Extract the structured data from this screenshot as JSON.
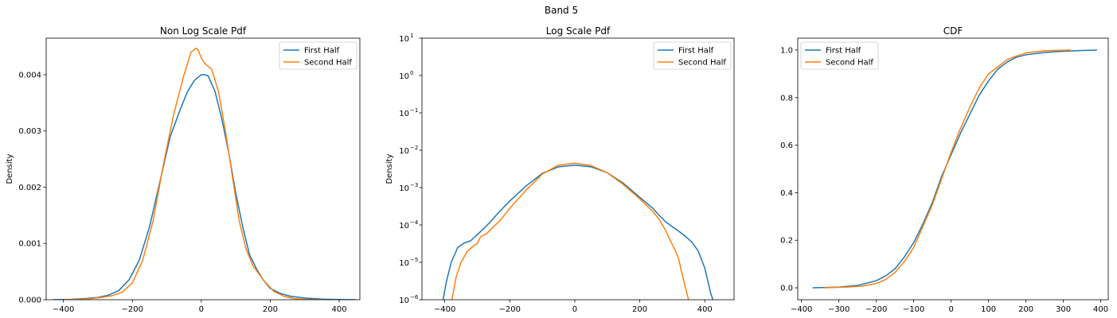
{
  "figure": {
    "suptitle": "Band 5"
  },
  "colors": {
    "first": "#1f77b4",
    "second": "#ff7f0e"
  },
  "chart_data": [
    {
      "type": "line",
      "title": "Non Log Scale Pdf",
      "xlabel": "",
      "ylabel": "Density",
      "xlim": [
        -450,
        460
      ],
      "ylim": [
        0,
        0.00465
      ],
      "yscale": "linear",
      "xticks": [
        -400,
        -200,
        0,
        200,
        400
      ],
      "xtick_labels": [
        "−400",
        "−200",
        "0",
        "200",
        "400"
      ],
      "yticks": [
        0,
        0.001,
        0.002,
        0.003,
        0.004
      ],
      "ytick_labels": [
        "0.000",
        "0.001",
        "0.002",
        "0.003",
        "0.004"
      ],
      "legend": {
        "position": "top-right",
        "entries": [
          "First Half",
          "Second Half"
        ]
      },
      "series": [
        {
          "name": "First Half",
          "color": "#1f77b4",
          "x": [
            -430,
            -380,
            -340,
            -300,
            -270,
            -240,
            -210,
            -180,
            -150,
            -120,
            -90,
            -60,
            -40,
            -20,
            0,
            10,
            20,
            40,
            60,
            80,
            100,
            120,
            140,
            160,
            180,
            200,
            230,
            260,
            300,
            350,
            400,
            450
          ],
          "y": [
            0,
            5e-06,
            2e-05,
            4e-05,
            8e-05,
            0.00016,
            0.00035,
            0.0007,
            0.0013,
            0.0021,
            0.0029,
            0.0034,
            0.0037,
            0.0039,
            0.004,
            0.004,
            0.00398,
            0.0037,
            0.0032,
            0.0026,
            0.0019,
            0.0013,
            0.0008,
            0.00055,
            0.00035,
            0.0002,
            0.00011,
            6e-05,
            3e-05,
            1e-05,
            4e-06,
            0
          ]
        },
        {
          "name": "Second Half",
          "color": "#ff7f0e",
          "x": [
            -400,
            -360,
            -320,
            -290,
            -260,
            -230,
            -200,
            -170,
            -140,
            -110,
            -80,
            -50,
            -30,
            -15,
            -10,
            0,
            10,
            30,
            50,
            70,
            90,
            110,
            130,
            150,
            180,
            210,
            240,
            270,
            300,
            330,
            350
          ],
          "y": [
            0,
            5e-06,
            2e-05,
            4e-05,
            7e-05,
            0.00013,
            0.0003,
            0.0007,
            0.0014,
            0.0024,
            0.0033,
            0.004,
            0.0044,
            0.00447,
            0.00445,
            0.0043,
            0.0042,
            0.0041,
            0.0037,
            0.003,
            0.0022,
            0.0014,
            0.0009,
            0.0006,
            0.00035,
            0.00015,
            6e-05,
            2e-05,
            7e-06,
            2e-06,
            0
          ]
        }
      ]
    },
    {
      "type": "line",
      "title": "Log Scale Pdf",
      "xlabel": "",
      "ylabel": "Density",
      "xlim": [
        -470,
        490
      ],
      "ylim": [
        1e-06,
        10
      ],
      "yscale": "log",
      "xticks": [
        -400,
        -200,
        0,
        200,
        400
      ],
      "xtick_labels": [
        "−400",
        "−200",
        "0",
        "200",
        "400"
      ],
      "yticks": [
        1e-06,
        1e-05,
        0.0001,
        0.001,
        0.01,
        0.1,
        1,
        10
      ],
      "ytick_labels": [
        [
          "10",
          "−6"
        ],
        [
          "10",
          "−5"
        ],
        [
          "10",
          "−4"
        ],
        [
          "10",
          "−3"
        ],
        [
          "10",
          "−2"
        ],
        [
          "10",
          "−1"
        ],
        [
          "10",
          "0"
        ],
        [
          "10",
          "1"
        ]
      ],
      "legend": {
        "position": "top-right",
        "entries": [
          "First Half",
          "Second Half"
        ]
      },
      "series": [
        {
          "name": "First Half",
          "color": "#1f77b4",
          "x": [
            -405,
            -395,
            -380,
            -360,
            -340,
            -320,
            -300,
            -280,
            -260,
            -240,
            -200,
            -150,
            -100,
            -50,
            0,
            50,
            100,
            150,
            200,
            240,
            260,
            280,
            300,
            320,
            340,
            360,
            380,
            400,
            410,
            418,
            425
          ],
          "y": [
            1e-06,
            3e-06,
            1e-05,
            2.5e-05,
            3.3e-05,
            3.8e-05,
            5.5e-05,
            8e-05,
            0.00012,
            0.00019,
            0.00044,
            0.0011,
            0.0024,
            0.0036,
            0.004,
            0.0036,
            0.0025,
            0.0013,
            0.00055,
            0.00028,
            0.00018,
            0.00012,
            9e-05,
            6.8e-05,
            5e-05,
            3.5e-05,
            2e-05,
            7e-06,
            3e-06,
            1.5e-06,
            1e-06
          ]
        },
        {
          "name": "Second Half",
          "color": "#ff7f0e",
          "x": [
            -378,
            -365,
            -350,
            -330,
            -315,
            -300,
            -290,
            -270,
            -250,
            -230,
            -200,
            -150,
            -100,
            -50,
            0,
            50,
            100,
            150,
            200,
            240,
            260,
            280,
            300,
            310,
            320,
            330,
            340,
            350
          ],
          "y": [
            1e-06,
            4e-06,
            1e-05,
            2e-05,
            2.6e-05,
            3.2e-05,
            4.8e-05,
            6e-05,
            9e-05,
            0.00013,
            0.00028,
            0.00085,
            0.0023,
            0.004,
            0.0045,
            0.0039,
            0.0025,
            0.0012,
            0.0005,
            0.00023,
            0.00014,
            7e-05,
            3e-05,
            2e-05,
            1.2e-05,
            5e-06,
            2.2e-06,
            1e-06
          ]
        }
      ]
    },
    {
      "type": "line",
      "title": "CDF",
      "xlabel": "",
      "ylabel": "",
      "xlim": [
        -410,
        420
      ],
      "ylim": [
        -0.05,
        1.05
      ],
      "yscale": "linear",
      "xticks": [
        -400,
        -300,
        -200,
        -100,
        0,
        100,
        200,
        300,
        400
      ],
      "xtick_labels": [
        "−400",
        "−300",
        "−200",
        "−100",
        "0",
        "100",
        "200",
        "300",
        "400"
      ],
      "yticks": [
        0,
        0.2,
        0.4,
        0.6,
        0.8,
        1.0
      ],
      "ytick_labels": [
        "0.0",
        "0.2",
        "0.4",
        "0.6",
        "0.8",
        "1.0"
      ],
      "legend": {
        "position": "top-left",
        "entries": [
          "First Half",
          "Second Half"
        ]
      },
      "series": [
        {
          "name": "First Half",
          "color": "#1f77b4",
          "x": [
            -370,
            -300,
            -250,
            -200,
            -175,
            -150,
            -125,
            -100,
            -75,
            -50,
            -25,
            0,
            25,
            50,
            75,
            100,
            125,
            150,
            175,
            200,
            250,
            300,
            350,
            390
          ],
          "y": [
            0,
            0.003,
            0.01,
            0.03,
            0.05,
            0.08,
            0.13,
            0.19,
            0.27,
            0.36,
            0.47,
            0.56,
            0.65,
            0.73,
            0.81,
            0.87,
            0.92,
            0.95,
            0.97,
            0.98,
            0.99,
            0.995,
            0.998,
            1.0
          ]
        },
        {
          "name": "Second Half",
          "color": "#ff7f0e",
          "x": [
            -340,
            -280,
            -240,
            -200,
            -175,
            -150,
            -125,
            -100,
            -75,
            -50,
            -25,
            0,
            25,
            50,
            75,
            100,
            125,
            150,
            175,
            200,
            250,
            300,
            320
          ],
          "y": [
            0,
            0.003,
            0.007,
            0.018,
            0.035,
            0.065,
            0.11,
            0.17,
            0.26,
            0.35,
            0.46,
            0.57,
            0.67,
            0.76,
            0.84,
            0.9,
            0.93,
            0.96,
            0.975,
            0.988,
            0.997,
            0.999,
            1.0
          ]
        }
      ]
    }
  ]
}
